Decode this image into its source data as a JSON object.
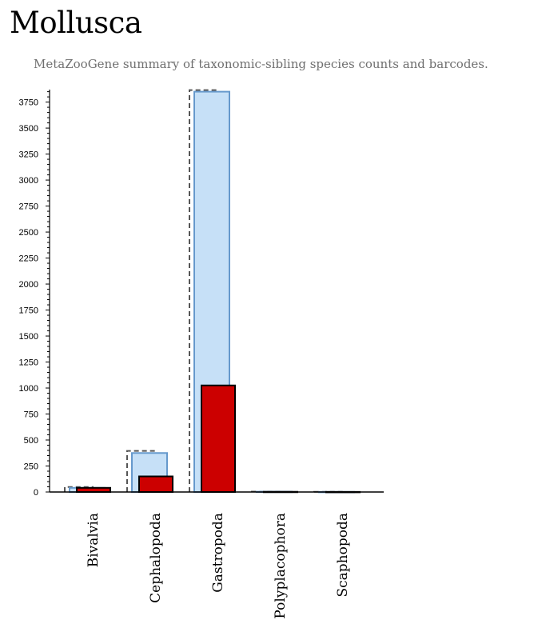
{
  "header": {
    "title": "Mollusca",
    "subtitle": "MetaZooGene summary of taxonomic-sibling species counts and barcodes."
  },
  "chart_data": {
    "type": "bar",
    "categories": [
      "Bivalvia",
      "Cephalopoda",
      "Gastropoda",
      "Polyplacophora",
      "Scaphopoda"
    ],
    "series": [
      {
        "values": [
          48,
          395,
          3865,
          4,
          2
        ],
        "color": "none",
        "stroke": "#555555",
        "style": "dashed"
      },
      {
        "values": [
          40,
          375,
          3850,
          3,
          1
        ],
        "color": "#c6e0f7",
        "stroke": "#6699cc",
        "style": "solid"
      },
      {
        "values": [
          40,
          150,
          1025,
          2,
          1
        ],
        "color": "#cc0000",
        "stroke": "#000000",
        "style": "solid"
      }
    ],
    "yticks": [
      0,
      250,
      500,
      750,
      1000,
      1250,
      1500,
      1750,
      2000,
      2250,
      2500,
      2750,
      3000,
      3250,
      3500,
      3750
    ],
    "ylim": [
      0,
      3870
    ],
    "grid": false
  }
}
